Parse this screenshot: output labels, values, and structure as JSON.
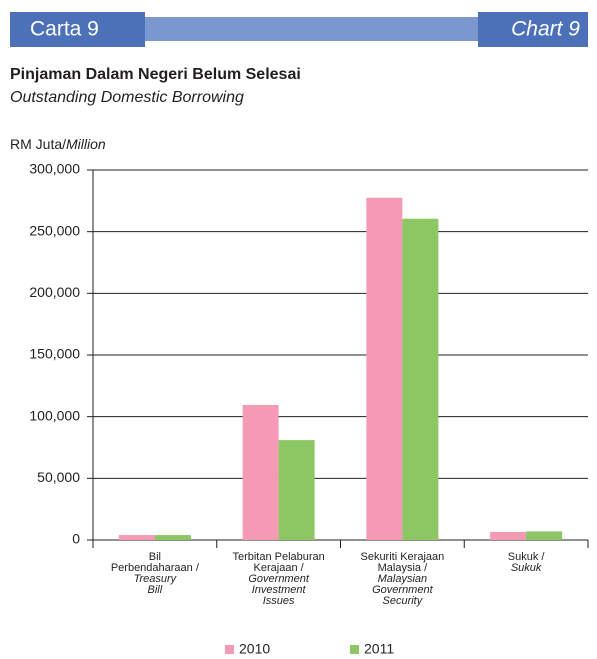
{
  "header": {
    "left": "Carta 9",
    "right": "Chart 9"
  },
  "chart_data": {
    "type": "bar",
    "title": "Pinjaman Dalam Negeri Belum Selesai",
    "subtitle": "Outstanding Domestic Borrowing",
    "y_label": {
      "malay": "RM Juta/",
      "english": "Million"
    },
    "categories": [
      {
        "malay": [
          "Bil",
          "Perbendaharaan /"
        ],
        "english": [
          "Treasury",
          "Bill"
        ]
      },
      {
        "malay": [
          "Terbitan Pelaburan",
          "Kerajaan /"
        ],
        "english": [
          "Government",
          "Investment",
          "Issues"
        ]
      },
      {
        "malay": [
          "Sekuriti Kerajaan",
          "Malaysia /"
        ],
        "english": [
          "Malaysian",
          "Government",
          "Security"
        ]
      },
      {
        "malay": [
          "Sukuk /"
        ],
        "english": [
          "Sukuk"
        ]
      }
    ],
    "series": [
      {
        "name": "2010",
        "color": "#f49ab4",
        "values": [
          4000,
          109500,
          277500,
          6500
        ]
      },
      {
        "name": "2011",
        "color": "#8cc763",
        "values": [
          4000,
          81000,
          260500,
          7000
        ]
      }
    ],
    "ylim": [
      0,
      300000
    ],
    "yticks": [
      0,
      {
        "value": 50000,
        "label": "50,000"
      },
      {
        "value": 100000,
        "label": "100,000"
      },
      {
        "value": 150000,
        "label": "150,000"
      },
      {
        "value": 200000,
        "label": "200,000"
      },
      {
        "value": 250000,
        "label": "250,000"
      },
      {
        "value": 300000,
        "label": "300,000"
      }
    ],
    "grid": true,
    "legend": "bottom"
  }
}
